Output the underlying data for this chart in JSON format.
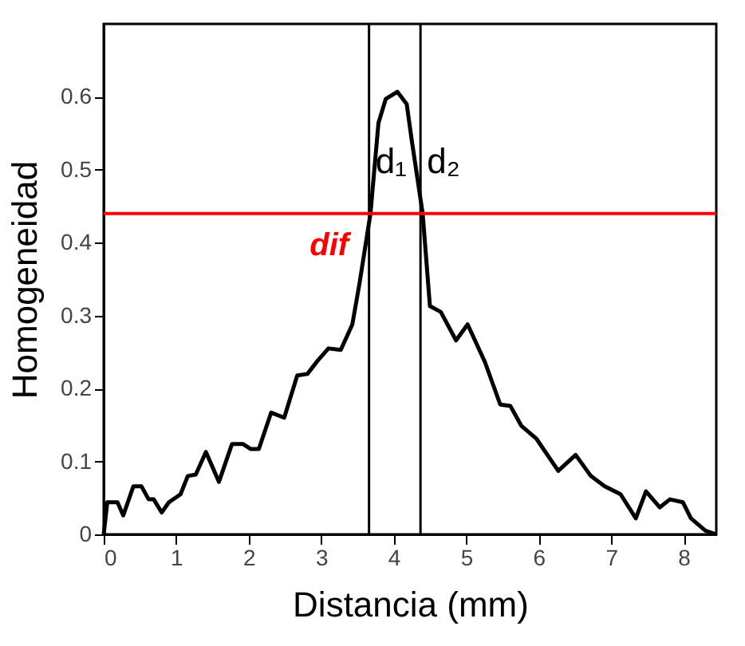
{
  "chart_data": {
    "type": "line",
    "xlabel": "Distancia (mm)",
    "ylabel": "Homogeneidad",
    "xlim": [
      0,
      8.45
    ],
    "ylim": [
      0,
      0.7
    ],
    "xticks": [
      0,
      1,
      2,
      3,
      4,
      5,
      6,
      7,
      8
    ],
    "yticks": [
      0,
      0.1,
      0.2,
      0.3,
      0.4,
      0.5,
      0.6
    ],
    "grid": false,
    "line_style": "solid",
    "marker": "none",
    "series": [
      {
        "color": "#000000",
        "x": [
          0,
          0.05,
          0.19,
          0.27,
          0.41,
          0.52,
          0.62,
          0.69,
          0.8,
          0.9,
          1.06,
          1.16,
          1.27,
          1.41,
          1.59,
          1.77,
          1.92,
          2.03,
          2.14,
          2.31,
          2.49,
          2.67,
          2.81,
          2.95,
          3.1,
          3.27,
          3.43,
          3.53,
          3.68,
          3.79,
          3.89,
          4.05,
          4.18,
          4.25,
          4.4,
          4.5,
          4.65,
          4.86,
          5.02,
          5.26,
          5.47,
          5.61,
          5.76,
          5.97,
          6.27,
          6.51,
          6.72,
          6.91,
          7.13,
          7.34,
          7.48,
          7.67,
          7.81,
          7.99,
          8.1,
          8.3,
          8.45
        ],
        "values": [
          0,
          0.044,
          0.044,
          0.026,
          0.066,
          0.066,
          0.048,
          0.048,
          0.03,
          0.044,
          0.055,
          0.08,
          0.082,
          0.113,
          0.072,
          0.124,
          0.124,
          0.117,
          0.117,
          0.167,
          0.16,
          0.218,
          0.22,
          0.238,
          0.255,
          0.253,
          0.288,
          0.345,
          0.44,
          0.564,
          0.597,
          0.607,
          0.59,
          0.54,
          0.44,
          0.313,
          0.305,
          0.266,
          0.288,
          0.236,
          0.178,
          0.176,
          0.149,
          0.131,
          0.087,
          0.109,
          0.08,
          0.066,
          0.055,
          0.022,
          0.059,
          0.037,
          0.048,
          0.044,
          0.022,
          0.005,
          0
        ]
      }
    ],
    "ref_lines": [
      {
        "axis": "x",
        "value": 3.66,
        "label": "d₁",
        "color": "#000000"
      },
      {
        "axis": "x",
        "value": 4.37,
        "label": "d₂",
        "color": "#000000"
      },
      {
        "axis": "y",
        "value": 0.44,
        "label": "dif",
        "color": "#ff0000"
      }
    ]
  }
}
